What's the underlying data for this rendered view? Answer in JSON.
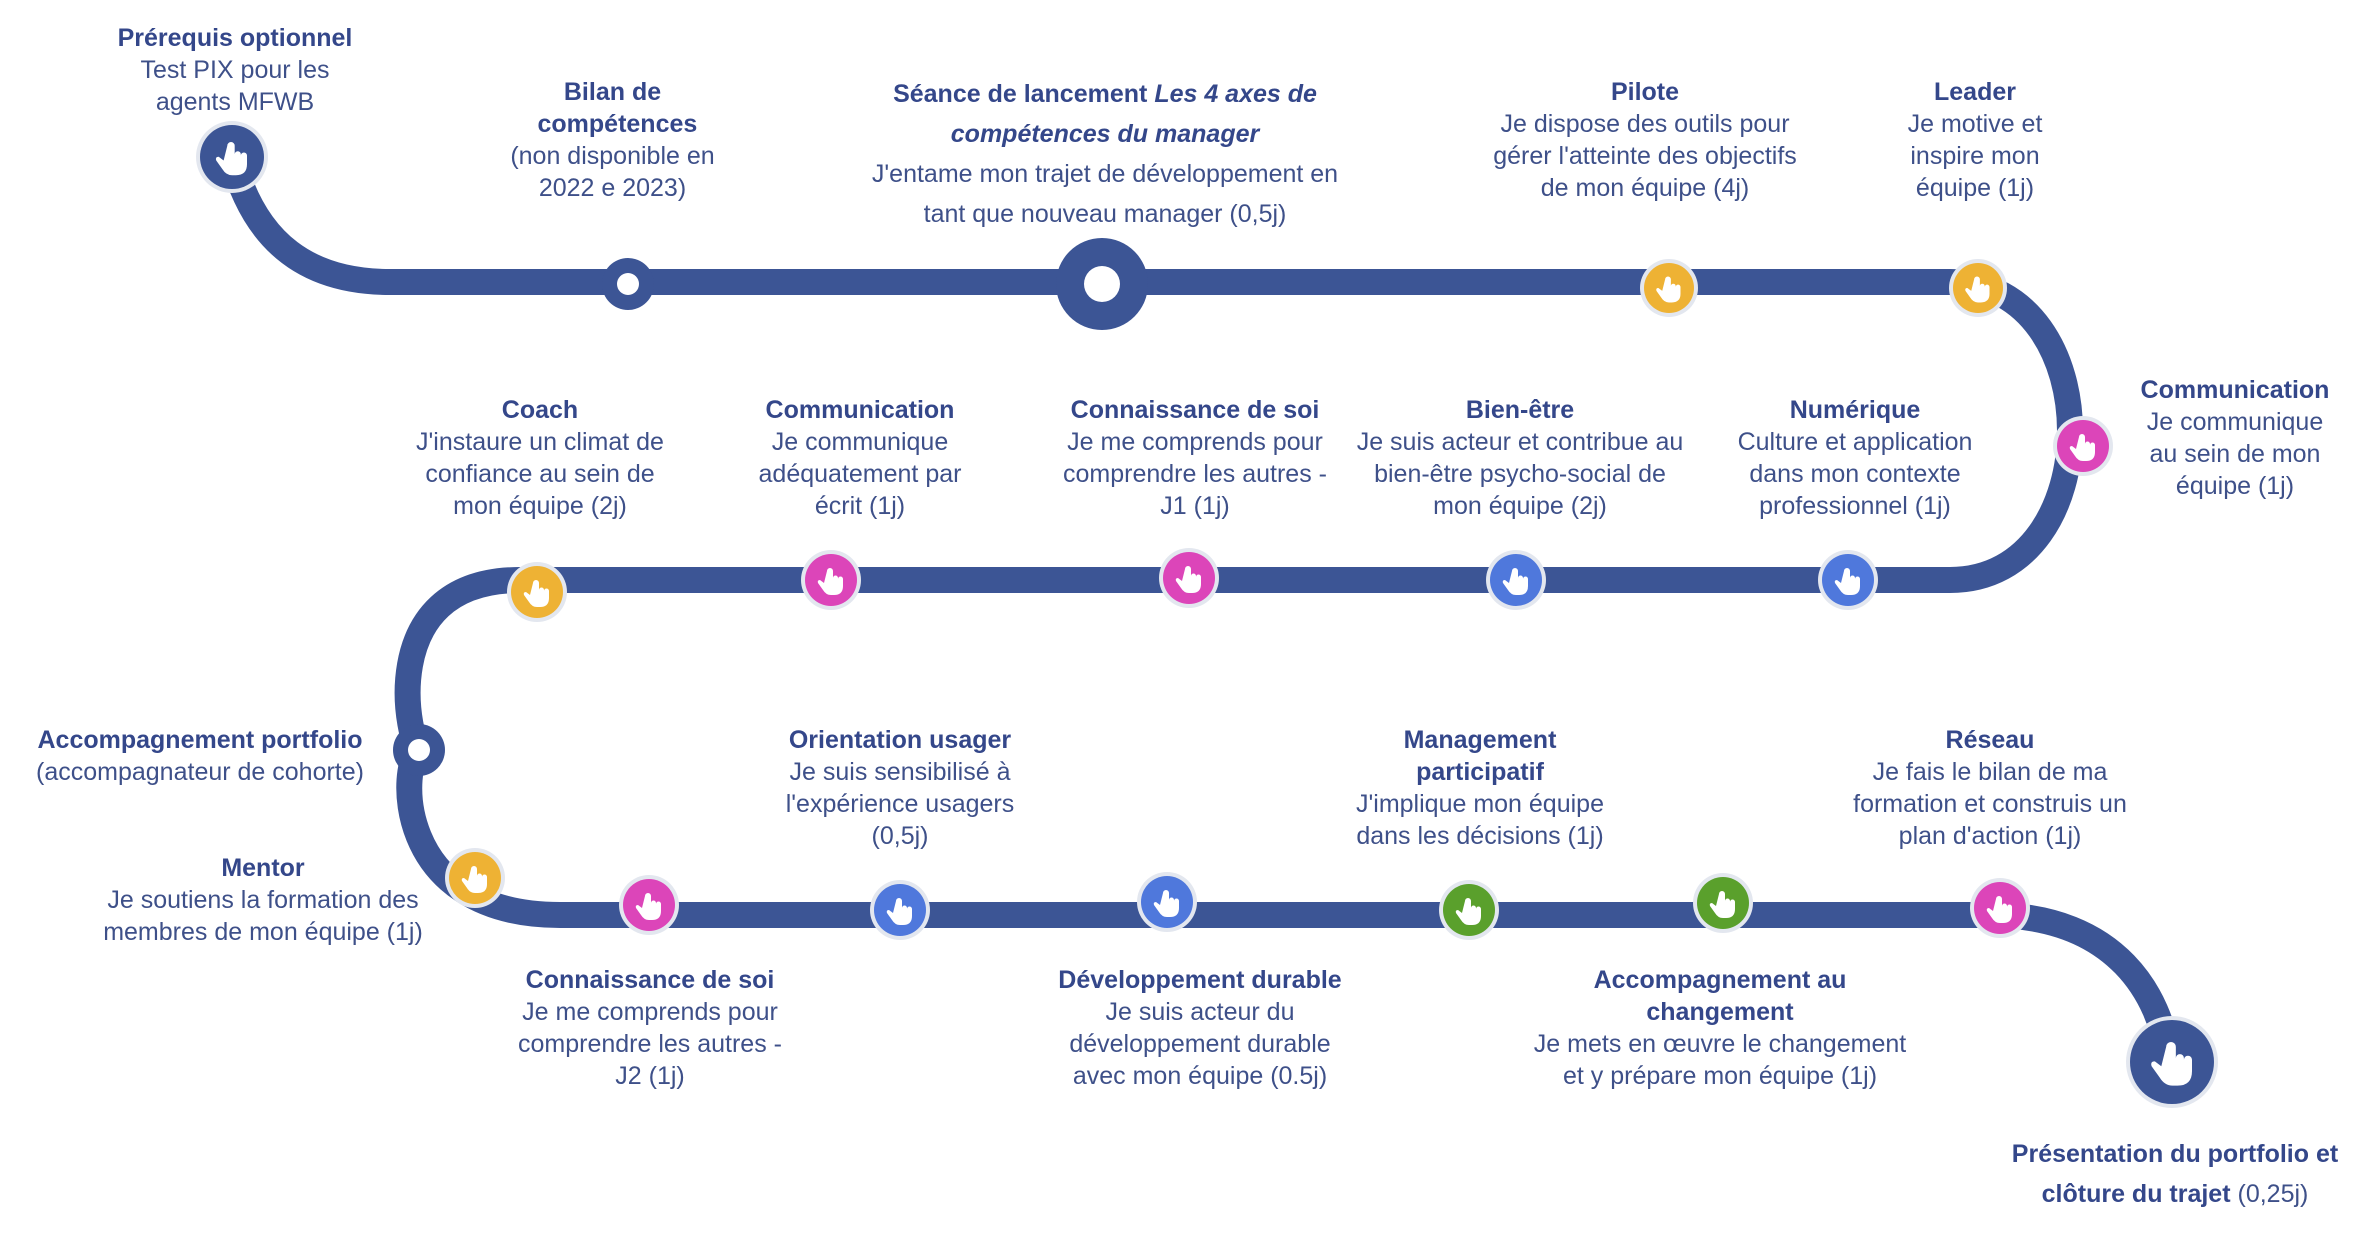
{
  "colors": {
    "road": "#3c5595",
    "yellow": "#eeb234",
    "magenta": "#dc45b9",
    "blue": "#4f78dc",
    "green": "#5aa02c",
    "navy": "#3c5595",
    "ring": "#e3e7ef",
    "text_title": "#34478a",
    "text_body": "#3e5089"
  },
  "milestones": [
    {
      "id": "prerequis",
      "icon": "hand-pointer-icon",
      "color": "navy",
      "title": "Prérequis optionnel",
      "desc": "Test PIX pour les agents MFWB"
    },
    {
      "id": "bilan",
      "icon": "hollow-circle",
      "color": "navy",
      "title": "Bilan de compétences",
      "desc": "(non disponible en 2022 e 2023)"
    },
    {
      "id": "lancement",
      "icon": "hollow-circle",
      "color": "navy",
      "title": "Séance de lancement",
      "title_italic": "Les 4 axes de compétences du manager",
      "desc": "J'entame mon trajet de développement en tant que nouveau manager (0,5j)"
    },
    {
      "id": "pilote",
      "icon": "hand-pointer-icon",
      "color": "yellow",
      "title": "Pilote",
      "desc": "Je dispose des outils pour gérer l'atteinte des objectifs de mon équipe (4j)"
    },
    {
      "id": "leader",
      "icon": "hand-pointer-icon",
      "color": "yellow",
      "title": "Leader",
      "desc": "Je motive et inspire mon équipe (1j)"
    },
    {
      "id": "communication-1",
      "icon": "hand-pointer-icon",
      "color": "magenta",
      "title": "Communication",
      "desc": "Je communique au sein de mon équipe (1j)"
    },
    {
      "id": "numerique",
      "icon": "hand-pointer-icon",
      "color": "blue",
      "title": "Numérique",
      "desc": "Culture et application dans mon contexte professionnel (1j)"
    },
    {
      "id": "bien-etre",
      "icon": "hand-pointer-icon",
      "color": "blue",
      "title": "Bien-être",
      "desc": "Je suis acteur et contribue au bien-être psycho-social de mon équipe (2j)"
    },
    {
      "id": "connaissance-1",
      "icon": "hand-pointer-icon",
      "color": "magenta",
      "title": "Connaissance de soi",
      "desc": "Je me comprends pour comprendre les autres - J1 (1j)"
    },
    {
      "id": "communication-2",
      "icon": "hand-pointer-icon",
      "color": "magenta",
      "title": "Communication",
      "desc": "Je communique adéquatement par écrit (1j)"
    },
    {
      "id": "coach",
      "icon": "hand-pointer-icon",
      "color": "yellow",
      "title": "Coach",
      "desc": "J'instaure un climat de confiance au sein de mon équipe (2j)"
    },
    {
      "id": "portfolio",
      "icon": "hollow-circle",
      "color": "navy",
      "title": "Accompagnement portfolio",
      "desc": "(accompagnateur de cohorte)"
    },
    {
      "id": "mentor",
      "icon": "hand-pointer-icon",
      "color": "yellow",
      "title": "Mentor",
      "desc": "Je soutiens la formation des membres de mon équipe (1j)"
    },
    {
      "id": "connaissance-2",
      "icon": "hand-pointer-icon",
      "color": "magenta",
      "title": "Connaissance de soi",
      "desc": "Je me comprends pour comprendre les autres - J2 (1j)"
    },
    {
      "id": "orientation",
      "icon": "hand-pointer-icon",
      "color": "blue",
      "title": "Orientation usager",
      "desc": "Je suis sensibilisé à l'expérience  usagers (0,5j)"
    },
    {
      "id": "durable",
      "icon": "hand-pointer-icon",
      "color": "blue",
      "title": "Développement durable",
      "desc": "Je suis acteur du développement durable avec mon équipe (0.5j)"
    },
    {
      "id": "participatif",
      "icon": "hand-pointer-icon",
      "color": "green",
      "title": "Management participatif",
      "desc": "J'implique mon équipe dans les décisions (1j)"
    },
    {
      "id": "changement",
      "icon": "hand-pointer-icon",
      "color": "green",
      "title": "Accompagnement au changement",
      "desc": "Je mets en œuvre le changement et y prépare mon équipe (1j)"
    },
    {
      "id": "reseau",
      "icon": "hand-pointer-icon",
      "color": "magenta",
      "title": "Réseau",
      "desc": "Je fais le bilan de ma formation et construis un plan d'action (1j)"
    },
    {
      "id": "cloture",
      "icon": "hand-pointer-icon",
      "color": "navy",
      "title": "Présentation du portfolio et clôture du trajet",
      "desc": "(0,25j)"
    }
  ]
}
